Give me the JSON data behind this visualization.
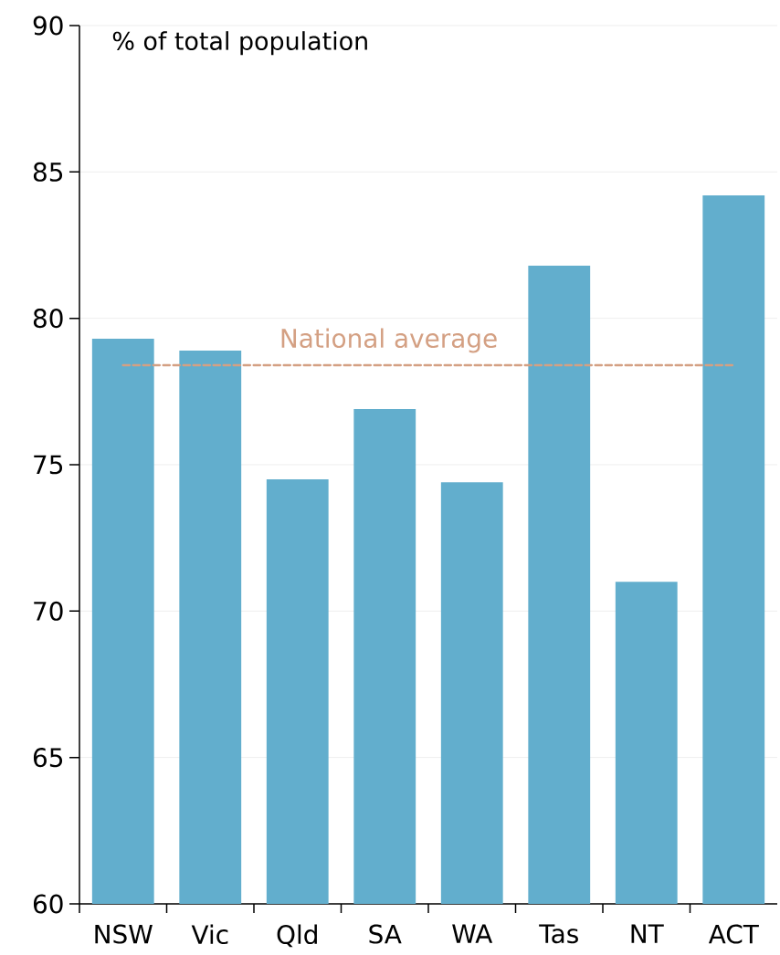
{
  "chart_data": {
    "type": "bar",
    "ylabel": "% of total population",
    "categories": [
      "NSW",
      "Vic",
      "Qld",
      "SA",
      "WA",
      "Tas",
      "NT",
      "ACT"
    ],
    "values": [
      79.3,
      78.9,
      74.5,
      76.9,
      74.4,
      81.8,
      71.0,
      84.2
    ],
    "color": "#62aecd",
    "ylim": [
      60,
      90
    ],
    "yticks": [
      60,
      65,
      70,
      75,
      80,
      85,
      90
    ],
    "grid": "y",
    "ref_lines": [
      {
        "axis": "y",
        "value": 78.4,
        "label": "National average",
        "color": "#d4a083",
        "line_style": "dashed"
      }
    ]
  }
}
